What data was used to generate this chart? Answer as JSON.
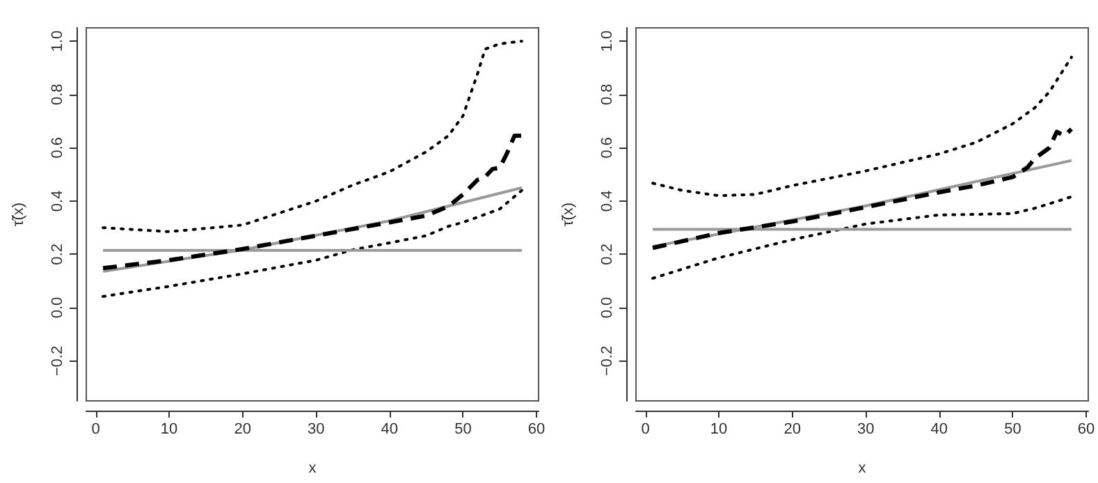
{
  "chart_data": [
    {
      "type": "line",
      "xlabel": "x",
      "ylabel": "τ̃(x)",
      "xlim": [
        -1.28,
        60.28
      ],
      "ylim": [
        -0.35,
        1.05
      ],
      "xticks": [
        0,
        10,
        20,
        30,
        40,
        50,
        60
      ],
      "yticks": [
        {
          "value": -0.2,
          "label": "−0.2"
        },
        {
          "value": 0,
          "label": "0.0"
        },
        {
          "value": 0.2,
          "label": "0.2"
        },
        {
          "value": 0.4,
          "label": "0.4"
        },
        {
          "value": 0.6,
          "label": "0.6"
        },
        {
          "value": 0.8,
          "label": "0.8"
        },
        {
          "value": 1,
          "label": "1.0"
        }
      ],
      "marker": "none",
      "series": [
        {
          "color": "#000000",
          "line_style": "dotted",
          "x": [
            1,
            10,
            20,
            30,
            35,
            40,
            45,
            48,
            50,
            52,
            53,
            55,
            58
          ],
          "values": [
            0.3,
            0.285,
            0.31,
            0.4,
            0.46,
            0.51,
            0.585,
            0.645,
            0.72,
            0.88,
            0.97,
            0.99,
            1.0
          ]
        },
        {
          "color": "#000000",
          "line_style": "dotted",
          "x": [
            1,
            10,
            20,
            30,
            35,
            40,
            45,
            48,
            50,
            55,
            58
          ],
          "values": [
            0.042,
            0.08,
            0.127,
            0.178,
            0.217,
            0.243,
            0.27,
            0.305,
            0.32,
            0.37,
            0.44
          ]
        },
        {
          "color": "#999999",
          "line_style": "solid",
          "x": [
            1,
            58
          ],
          "values": [
            0.215,
            0.215
          ]
        },
        {
          "color": "#999999",
          "line_style": "solid",
          "x": [
            1,
            20,
            40,
            58
          ],
          "values": [
            0.136,
            0.217,
            0.326,
            0.45
          ]
        },
        {
          "color": "#000000",
          "line_style": "dashed",
          "x": [
            1,
            10,
            20,
            30,
            40,
            45,
            48,
            50,
            52,
            53,
            54,
            55,
            56,
            57,
            58
          ],
          "values": [
            0.148,
            0.178,
            0.22,
            0.27,
            0.32,
            0.345,
            0.38,
            0.425,
            0.48,
            0.49,
            0.52,
            0.525,
            0.58,
            0.645,
            0.645
          ]
        }
      ]
    },
    {
      "type": "line",
      "xlabel": "x",
      "ylabel": "τ̃(x)",
      "xlim": [
        -1.28,
        60.28
      ],
      "ylim": [
        -0.35,
        1.05
      ],
      "xticks": [
        0,
        10,
        20,
        30,
        40,
        50,
        60
      ],
      "yticks": [
        {
          "value": -0.2,
          "label": "−0.2"
        },
        {
          "value": 0,
          "label": "0.0"
        },
        {
          "value": 0.2,
          "label": "0.2"
        },
        {
          "value": 0.4,
          "label": "0.4"
        },
        {
          "value": 0.6,
          "label": "0.6"
        },
        {
          "value": 0.8,
          "label": "0.8"
        },
        {
          "value": 1,
          "label": "1.0"
        }
      ],
      "marker": "none",
      "series": [
        {
          "color": "#000000",
          "line_style": "dotted",
          "x": [
            1,
            5,
            10,
            15,
            20,
            30,
            40,
            45,
            50,
            53,
            55,
            58
          ],
          "values": [
            0.467,
            0.44,
            0.42,
            0.425,
            0.458,
            0.513,
            0.577,
            0.62,
            0.69,
            0.75,
            0.81,
            0.94
          ]
        },
        {
          "color": "#000000",
          "line_style": "dotted",
          "x": [
            1,
            10,
            20,
            30,
            40,
            45,
            50,
            53,
            55,
            58
          ],
          "values": [
            0.11,
            0.187,
            0.255,
            0.314,
            0.348,
            0.35,
            0.353,
            0.373,
            0.39,
            0.416
          ]
        },
        {
          "color": "#999999",
          "line_style": "solid",
          "x": [
            1,
            58
          ],
          "values": [
            0.294,
            0.294
          ]
        },
        {
          "color": "#999999",
          "line_style": "solid",
          "x": [
            1,
            30,
            58
          ],
          "values": [
            0.229,
            0.382,
            0.552
          ]
        },
        {
          "color": "#000000",
          "line_style": "dashed",
          "x": [
            1,
            10,
            20,
            30,
            40,
            45,
            50,
            52,
            53,
            55,
            56,
            57,
            58
          ],
          "values": [
            0.224,
            0.28,
            0.323,
            0.377,
            0.433,
            0.458,
            0.49,
            0.526,
            0.56,
            0.6,
            0.66,
            0.645,
            0.67
          ]
        }
      ]
    }
  ]
}
